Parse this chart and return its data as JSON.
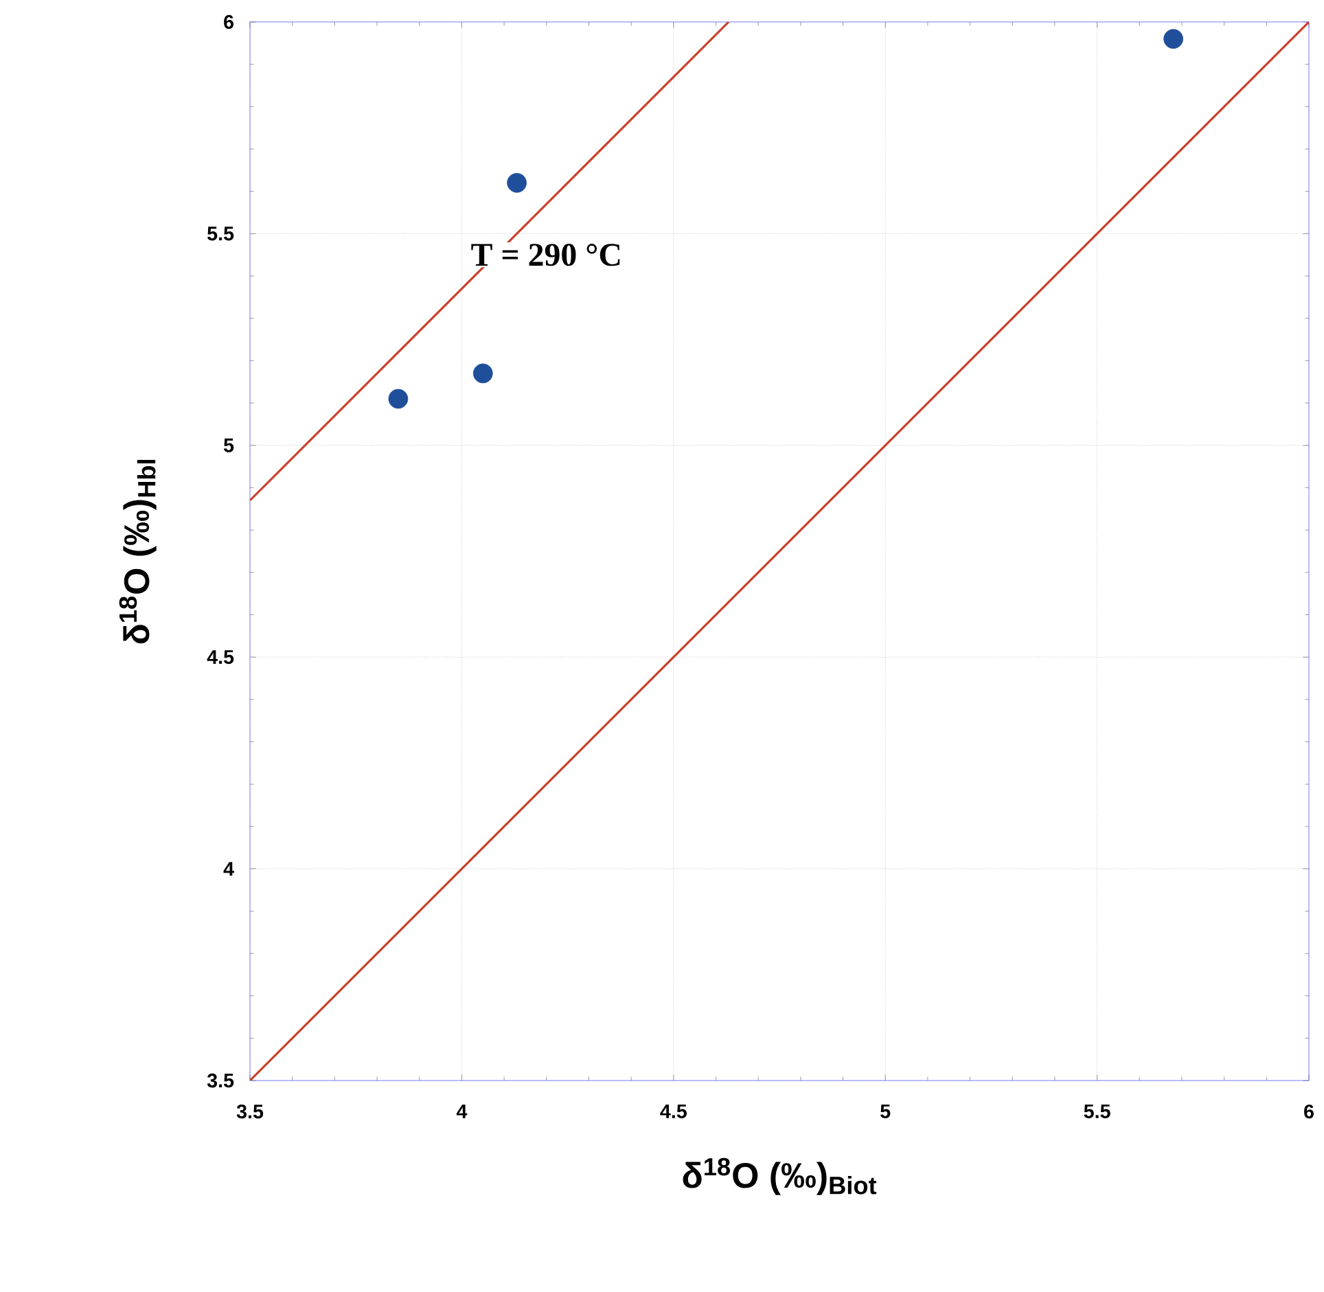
{
  "chart_data": {
    "type": "scatter",
    "xlabel": "δ$^{18}$O (‰)$_{Biot}$",
    "ylabel": "δ$^{18}$O (‰)$_{Hbl}$",
    "xlim": [
      3.5,
      6
    ],
    "ylim": [
      3.5,
      6
    ],
    "xticks": [
      3.5,
      4,
      4.5,
      5,
      5.5,
      6
    ],
    "yticks": [
      3.5,
      4,
      4.5,
      5,
      5.5,
      6
    ],
    "grid": true,
    "annotations": [
      "T = 290 °C"
    ],
    "series": [
      {
        "marker": "circle",
        "color": "#1f4e9a",
        "x": [
          3.85,
          4.05,
          4.13,
          5.68
        ],
        "values": [
          5.11,
          5.17,
          5.62,
          5.96
        ]
      },
      {
        "type": "line",
        "marker": "none",
        "color": "#c8402a",
        "x": [
          3.5,
          4.63
        ],
        "values": [
          4.87,
          6
        ]
      },
      {
        "type": "line",
        "marker": "none",
        "color": "#c8402a",
        "x": [
          3.5,
          6
        ],
        "values": [
          3.5,
          6
        ]
      }
    ]
  }
}
